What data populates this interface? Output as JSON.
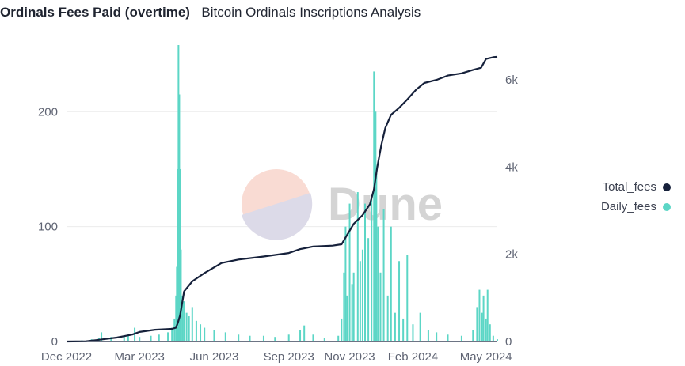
{
  "header": {
    "title": "Ordinals Fees Paid (overtime)",
    "subtitle": "Bitcoin Ordinals Inscriptions Analysis"
  },
  "watermark": {
    "text": "Dune"
  },
  "colors": {
    "total": "#16213b",
    "daily": "#5cd6c6",
    "grid": "#ececec"
  },
  "chart_data": {
    "type": "bar+line",
    "title": "Ordinals Fees Paid (overtime)",
    "x_ticks": [
      "Dec 2022",
      "Mar 2023",
      "Jun 2023",
      "Sep 2023",
      "Nov 2023",
      "Feb 2024",
      "May 2024"
    ],
    "y_left": {
      "ticks": [
        "0",
        "100",
        "200"
      ],
      "range": [
        0,
        258
      ]
    },
    "y_right": {
      "ticks": [
        "0",
        "2k",
        "4k",
        "6k"
      ],
      "range": [
        0,
        6800
      ]
    },
    "grid": true,
    "legend_position": "right",
    "series": [
      {
        "name": "Total_fees",
        "type": "line",
        "axis": "right",
        "color": "#16213b",
        "points": [
          [
            "2022-12-01",
            0
          ],
          [
            "2022-12-25",
            5
          ],
          [
            "2023-01-10",
            40
          ],
          [
            "2023-02-01",
            90
          ],
          [
            "2023-02-20",
            160
          ],
          [
            "2023-03-01",
            220
          ],
          [
            "2023-03-20",
            270
          ],
          [
            "2023-04-10",
            290
          ],
          [
            "2023-04-15",
            320
          ],
          [
            "2023-04-17",
            420
          ],
          [
            "2023-04-20",
            600
          ],
          [
            "2023-04-25",
            1150
          ],
          [
            "2023-05-05",
            1380
          ],
          [
            "2023-05-20",
            1570
          ],
          [
            "2023-06-10",
            1800
          ],
          [
            "2023-07-01",
            1880
          ],
          [
            "2023-08-01",
            1950
          ],
          [
            "2023-09-01",
            2030
          ],
          [
            "2023-09-15",
            2120
          ],
          [
            "2023-10-01",
            2180
          ],
          [
            "2023-10-25",
            2200
          ],
          [
            "2023-11-05",
            2230
          ],
          [
            "2023-11-12",
            2450
          ],
          [
            "2023-11-20",
            2700
          ],
          [
            "2023-12-01",
            2900
          ],
          [
            "2023-12-10",
            3150
          ],
          [
            "2023-12-15",
            3500
          ],
          [
            "2023-12-19",
            4000
          ],
          [
            "2023-12-24",
            4500
          ],
          [
            "2023-12-29",
            4900
          ],
          [
            "2024-01-05",
            5200
          ],
          [
            "2024-01-15",
            5360
          ],
          [
            "2024-01-25",
            5550
          ],
          [
            "2024-02-05",
            5780
          ],
          [
            "2024-02-15",
            5930
          ],
          [
            "2024-03-01",
            6000
          ],
          [
            "2024-03-15",
            6100
          ],
          [
            "2024-04-01",
            6150
          ],
          [
            "2024-04-15",
            6230
          ],
          [
            "2024-04-25",
            6280
          ],
          [
            "2024-05-01",
            6480
          ],
          [
            "2024-05-10",
            6520
          ],
          [
            "2024-05-15",
            6530
          ]
        ]
      },
      {
        "name": "Daily_fees",
        "type": "bar",
        "axis": "left",
        "color": "#5cd6c6",
        "points": [
          [
            "2022-12-01",
            0
          ],
          [
            "2022-12-20",
            1
          ],
          [
            "2023-01-01",
            2
          ],
          [
            "2023-01-10",
            3
          ],
          [
            "2023-01-13",
            8
          ],
          [
            "2023-01-25",
            4
          ],
          [
            "2023-02-10",
            5
          ],
          [
            "2023-02-15",
            6
          ],
          [
            "2023-02-23",
            12
          ],
          [
            "2023-03-01",
            4
          ],
          [
            "2023-03-15",
            5
          ],
          [
            "2023-03-25",
            6
          ],
          [
            "2023-04-05",
            8
          ],
          [
            "2023-04-10",
            12
          ],
          [
            "2023-04-13",
            20
          ],
          [
            "2023-04-15",
            40
          ],
          [
            "2023-04-16",
            65
          ],
          [
            "2023-04-17",
            150
          ],
          [
            "2023-04-18",
            258
          ],
          [
            "2023-04-19",
            215
          ],
          [
            "2023-04-20",
            150
          ],
          [
            "2023-04-21",
            80
          ],
          [
            "2023-04-23",
            40
          ],
          [
            "2023-04-25",
            35
          ],
          [
            "2023-04-28",
            25
          ],
          [
            "2023-05-01",
            22
          ],
          [
            "2023-05-05",
            30
          ],
          [
            "2023-05-10",
            18
          ],
          [
            "2023-05-15",
            15
          ],
          [
            "2023-05-20",
            12
          ],
          [
            "2023-06-01",
            10
          ],
          [
            "2023-06-15",
            8
          ],
          [
            "2023-07-01",
            6
          ],
          [
            "2023-07-15",
            5
          ],
          [
            "2023-08-01",
            5
          ],
          [
            "2023-08-15",
            4
          ],
          [
            "2023-09-01",
            6
          ],
          [
            "2023-09-15",
            10
          ],
          [
            "2023-09-20",
            14
          ],
          [
            "2023-10-01",
            6
          ],
          [
            "2023-10-15",
            3
          ],
          [
            "2023-11-01",
            5
          ],
          [
            "2023-11-05",
            20
          ],
          [
            "2023-11-08",
            60
          ],
          [
            "2023-11-10",
            100
          ],
          [
            "2023-11-12",
            40
          ],
          [
            "2023-11-15",
            120
          ],
          [
            "2023-11-18",
            50
          ],
          [
            "2023-11-20",
            60
          ],
          [
            "2023-11-25",
            130
          ],
          [
            "2023-11-28",
            70
          ],
          [
            "2023-12-01",
            80
          ],
          [
            "2023-12-04",
            120
          ],
          [
            "2023-12-08",
            90
          ],
          [
            "2023-12-12",
            125
          ],
          [
            "2023-12-15",
            235
          ],
          [
            "2023-12-17",
            200
          ],
          [
            "2023-12-18",
            150
          ],
          [
            "2023-12-20",
            100
          ],
          [
            "2023-12-23",
            60
          ],
          [
            "2023-12-27",
            115
          ],
          [
            "2024-01-01",
            40
          ],
          [
            "2024-01-05",
            100
          ],
          [
            "2024-01-10",
            25
          ],
          [
            "2024-01-15",
            70
          ],
          [
            "2024-01-20",
            20
          ],
          [
            "2024-01-25",
            75
          ],
          [
            "2024-02-01",
            15
          ],
          [
            "2024-02-10",
            25
          ],
          [
            "2024-02-20",
            10
          ],
          [
            "2024-03-01",
            8
          ],
          [
            "2024-03-15",
            6
          ],
          [
            "2024-04-01",
            5
          ],
          [
            "2024-04-15",
            10
          ],
          [
            "2024-04-20",
            30
          ],
          [
            "2024-04-23",
            45
          ],
          [
            "2024-04-26",
            25
          ],
          [
            "2024-04-28",
            40
          ],
          [
            "2024-05-01",
            20
          ],
          [
            "2024-05-03",
            45
          ],
          [
            "2024-05-06",
            15
          ],
          [
            "2024-05-10",
            5
          ],
          [
            "2024-05-15",
            2
          ]
        ]
      }
    ]
  }
}
